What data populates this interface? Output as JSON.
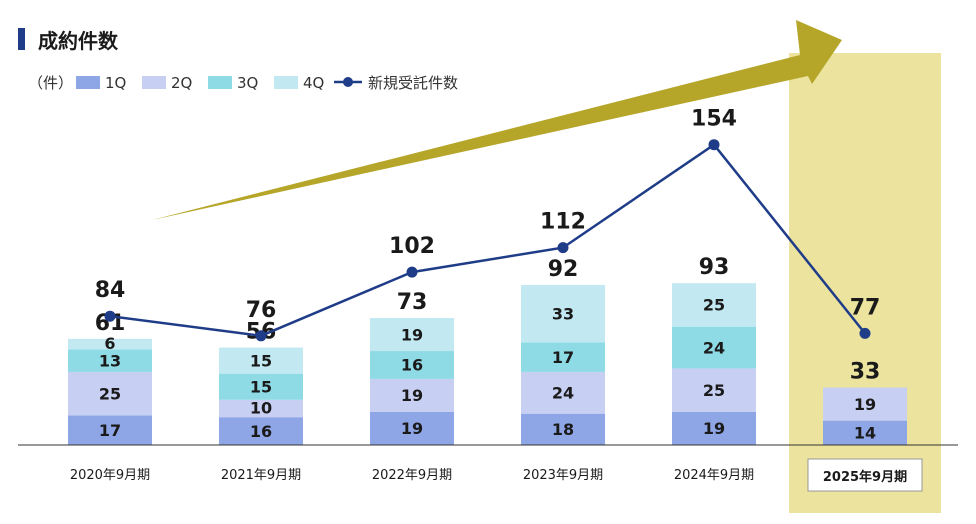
{
  "header": {
    "title": "成約件数"
  },
  "chart_data": {
    "type": "bar",
    "title": "成約件数",
    "unit_label": "（件）",
    "categories": [
      "2020年9月期",
      "2021年9月期",
      "2022年9月期",
      "2023年9月期",
      "2024年9月期",
      "2025年9月期"
    ],
    "series": [
      {
        "name": "1Q",
        "color": "#8fa6e6",
        "values": [
          17,
          16,
          19,
          18,
          19,
          14
        ]
      },
      {
        "name": "2Q",
        "color": "#c7cff3",
        "values": [
          25,
          10,
          19,
          24,
          25,
          19
        ]
      },
      {
        "name": "3Q",
        "color": "#8edbe6",
        "values": [
          13,
          15,
          16,
          17,
          24,
          null
        ]
      },
      {
        "name": "4Q",
        "color": "#c2e9f2",
        "values": [
          6,
          15,
          19,
          33,
          25,
          null
        ]
      }
    ],
    "bar_totals": [
      61,
      56,
      73,
      92,
      93,
      33
    ],
    "line": {
      "name": "新規受託件数",
      "color": "#1f3c88",
      "values": [
        84,
        76,
        102,
        112,
        154,
        77
      ]
    },
    "highlight_category": "2025年9月期",
    "highlight_color": "#ebe39e",
    "trend_arrow_color": "#b5a62a",
    "legend_position": "top-left",
    "xlabel": "",
    "ylabel": ""
  }
}
